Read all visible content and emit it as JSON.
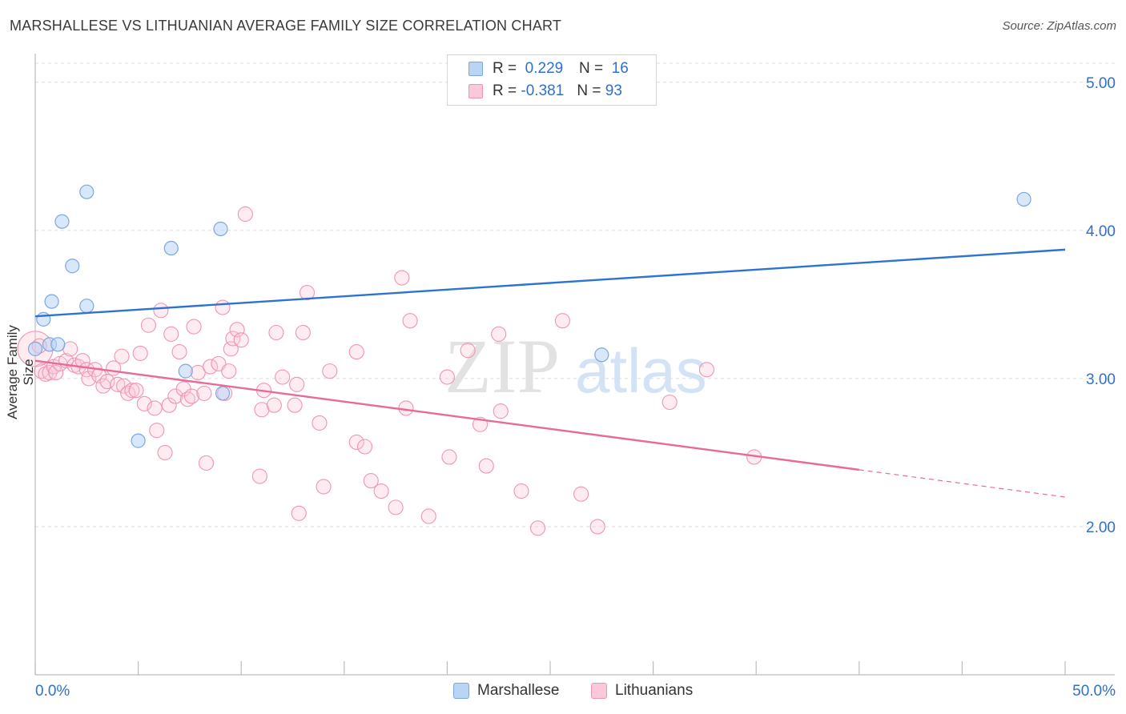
{
  "title": "MARSHALLESE VS LITHUANIAN AVERAGE FAMILY SIZE CORRELATION CHART",
  "source": "Source: ZipAtlas.com",
  "watermark": {
    "zip": "ZIP",
    "atlas": "atlas"
  },
  "legend": {
    "r_label": "R =",
    "n_label": "N =",
    "rows": [
      {
        "name": "Marshallese",
        "r": "0.229",
        "n": "16",
        "fill": "#b9d4f5",
        "stroke": "#7ea6de"
      },
      {
        "name": "Lithuanians",
        "r": "-0.381",
        "n": "93",
        "fill": "#fbc8d8",
        "stroke": "#ef94b2"
      }
    ]
  },
  "colors": {
    "blue_line": "#2f73d0",
    "pink_line": "#e86a98",
    "blue_point_fill": "rgba(185,212,245,0.55)",
    "blue_point_stroke": "#7ea6de",
    "pink_point_fill": "rgba(251,200,216,0.35)",
    "pink_point_stroke": "#ef94b2",
    "axis_label": "#2f6fd0",
    "grid": "#dcdcdc"
  },
  "chart_data": {
    "type": "scatter",
    "title": "MARSHALLESE VS LITHUANIAN AVERAGE FAMILY SIZE CORRELATION CHART",
    "xlabel": "",
    "ylabel": "Average Family Size",
    "xlim": [
      0,
      50
    ],
    "ylim": [
      1.0,
      5.15
    ],
    "x_tick_labels": [
      "0.0%",
      "50.0%"
    ],
    "y_ticks": [
      2.0,
      3.0,
      4.0,
      5.0
    ],
    "y_tick_labels": [
      "2.00",
      "3.00",
      "4.00",
      "5.00"
    ],
    "grid": true,
    "series": [
      {
        "name": "Marshallese",
        "r": 0.229,
        "n": 16,
        "trend": {
          "x0": 0,
          "y0": 3.42,
          "x1": 50,
          "y1": 3.87,
          "dashed_from": null
        },
        "points": [
          [
            0.0,
            3.2
          ],
          [
            0.4,
            3.4
          ],
          [
            0.7,
            3.23
          ],
          [
            0.8,
            3.52
          ],
          [
            1.1,
            3.23
          ],
          [
            1.3,
            4.06
          ],
          [
            1.8,
            3.76
          ],
          [
            2.5,
            3.49
          ],
          [
            2.5,
            4.26
          ],
          [
            5.0,
            2.58
          ],
          [
            6.6,
            3.88
          ],
          [
            7.3,
            3.05
          ],
          [
            9.0,
            4.01
          ],
          [
            9.1,
            2.9
          ],
          [
            27.5,
            3.16
          ],
          [
            48.0,
            4.21
          ]
        ]
      },
      {
        "name": "Lithuanians",
        "r": -0.381,
        "n": 93,
        "trend": {
          "x0": 0,
          "y0": 3.12,
          "x1": 50,
          "y1": 2.2,
          "dashed_from": 40
        },
        "points": [
          [
            0.0,
            3.2
          ],
          [
            0.3,
            3.05
          ],
          [
            0.5,
            3.03
          ],
          [
            0.7,
            3.04
          ],
          [
            0.9,
            3.08
          ],
          [
            1.0,
            3.04
          ],
          [
            1.2,
            3.1
          ],
          [
            1.5,
            3.12
          ],
          [
            1.7,
            3.2
          ],
          [
            1.9,
            3.09
          ],
          [
            2.1,
            3.08
          ],
          [
            2.3,
            3.12
          ],
          [
            2.5,
            3.06
          ],
          [
            2.6,
            3.0
          ],
          [
            2.9,
            3.06
          ],
          [
            3.1,
            3.02
          ],
          [
            3.3,
            2.95
          ],
          [
            3.5,
            2.98
          ],
          [
            3.8,
            3.07
          ],
          [
            4.0,
            2.96
          ],
          [
            4.2,
            3.15
          ],
          [
            4.3,
            2.95
          ],
          [
            4.5,
            2.9
          ],
          [
            4.7,
            2.92
          ],
          [
            4.9,
            2.92
          ],
          [
            5.1,
            3.17
          ],
          [
            5.3,
            2.83
          ],
          [
            5.5,
            3.36
          ],
          [
            5.8,
            2.8
          ],
          [
            5.9,
            2.65
          ],
          [
            6.1,
            3.46
          ],
          [
            6.3,
            2.5
          ],
          [
            6.5,
            2.82
          ],
          [
            6.6,
            3.3
          ],
          [
            6.8,
            2.88
          ],
          [
            7.0,
            3.18
          ],
          [
            7.2,
            2.93
          ],
          [
            7.4,
            2.86
          ],
          [
            7.6,
            2.88
          ],
          [
            7.7,
            3.35
          ],
          [
            7.9,
            3.04
          ],
          [
            8.2,
            2.9
          ],
          [
            8.3,
            2.43
          ],
          [
            8.5,
            3.08
          ],
          [
            8.9,
            3.1
          ],
          [
            9.2,
            2.9
          ],
          [
            9.1,
            3.48
          ],
          [
            9.4,
            3.05
          ],
          [
            9.5,
            3.2
          ],
          [
            9.6,
            3.27
          ],
          [
            9.8,
            3.33
          ],
          [
            10.0,
            3.26
          ],
          [
            10.2,
            4.11
          ],
          [
            10.9,
            2.34
          ],
          [
            11.0,
            2.79
          ],
          [
            11.1,
            2.92
          ],
          [
            11.6,
            2.82
          ],
          [
            11.7,
            3.31
          ],
          [
            12.0,
            3.01
          ],
          [
            12.6,
            2.82
          ],
          [
            12.7,
            2.96
          ],
          [
            12.8,
            2.09
          ],
          [
            13.0,
            3.31
          ],
          [
            13.2,
            3.58
          ],
          [
            13.8,
            2.7
          ],
          [
            14.0,
            2.27
          ],
          [
            14.3,
            3.05
          ],
          [
            15.6,
            3.18
          ],
          [
            15.6,
            2.57
          ],
          [
            16.0,
            2.54
          ],
          [
            16.3,
            2.31
          ],
          [
            16.8,
            2.24
          ],
          [
            17.5,
            2.13
          ],
          [
            17.8,
            3.68
          ],
          [
            18.0,
            2.8
          ],
          [
            18.2,
            3.39
          ],
          [
            19.1,
            2.07
          ],
          [
            20.0,
            3.01
          ],
          [
            20.1,
            2.47
          ],
          [
            21.0,
            3.19
          ],
          [
            21.6,
            2.69
          ],
          [
            21.9,
            2.41
          ],
          [
            22.5,
            3.3
          ],
          [
            22.6,
            2.78
          ],
          [
            23.6,
            2.24
          ],
          [
            24.4,
            1.99
          ],
          [
            25.6,
            3.39
          ],
          [
            26.5,
            2.22
          ],
          [
            27.3,
            2.0
          ],
          [
            30.8,
            2.84
          ],
          [
            32.6,
            3.06
          ],
          [
            34.9,
            2.47
          ],
          [
            0.2,
            3.22
          ]
        ]
      }
    ]
  }
}
